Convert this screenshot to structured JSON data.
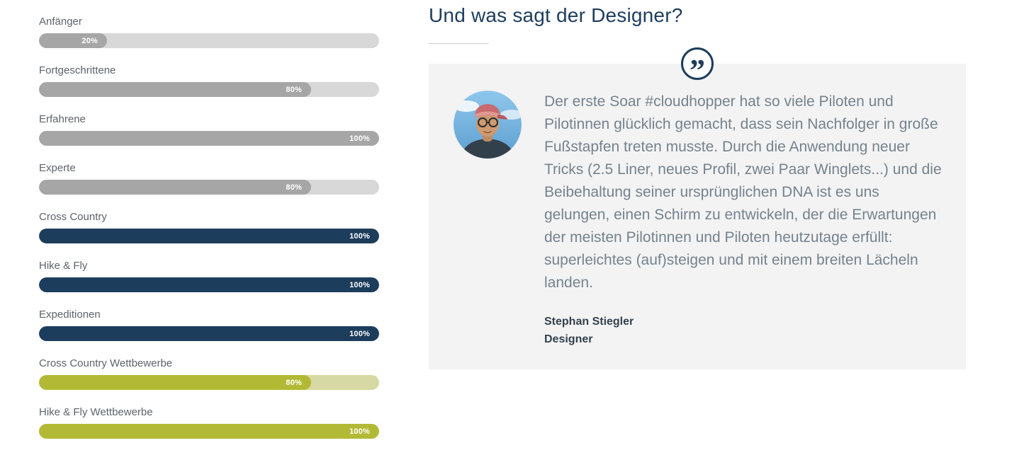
{
  "colors": {
    "navy": "#1d3d5d",
    "olive": "#b2ba35",
    "gray_fill": "#a6a6a6",
    "track_gray": "#d8d8d8",
    "track_olive": "#d6d9a3",
    "panel_bg": "#f3f3f3"
  },
  "skills": {
    "items": [
      {
        "label": "Anfänger",
        "percent": 20,
        "variant": "gray"
      },
      {
        "label": "Fortgeschrittene",
        "percent": 80,
        "variant": "gray"
      },
      {
        "label": "Erfahrene",
        "percent": 100,
        "variant": "gray"
      },
      {
        "label": "Experte",
        "percent": 80,
        "variant": "gray"
      },
      {
        "label": "Cross Country",
        "percent": 100,
        "variant": "navy"
      },
      {
        "label": "Hike & Fly",
        "percent": 100,
        "variant": "navy"
      },
      {
        "label": "Expeditionen",
        "percent": 100,
        "variant": "navy"
      },
      {
        "label": "Cross Country Wettbewerbe",
        "percent": 80,
        "variant": "olive"
      },
      {
        "label": "Hike & Fly Wettbewerbe",
        "percent": 100,
        "variant": "olive"
      }
    ]
  },
  "designer_section": {
    "title": "Und was sagt der Designer?",
    "quote_icon_glyph": "”",
    "quote": "Der erste Soar #cloudhopper hat so viele Piloten und Pilotinnen glücklich gemacht, dass sein Nachfolger in große Fußstapfen treten musste. Durch die Anwendung neuer Tricks (2.5 Liner, neues Profil, zwei Paar Winglets...) und die Beibehaltung seiner ursprünglichen DNA ist es uns gelungen, einen Schirm zu entwickeln, der die Erwartungen der meisten Pilotinnen und Piloten heutzutage erfüllt: superleichtes (auf)steigen und mit einem breiten Lächeln landen.",
    "author": "Stephan Stiegler",
    "role": "Designer"
  }
}
